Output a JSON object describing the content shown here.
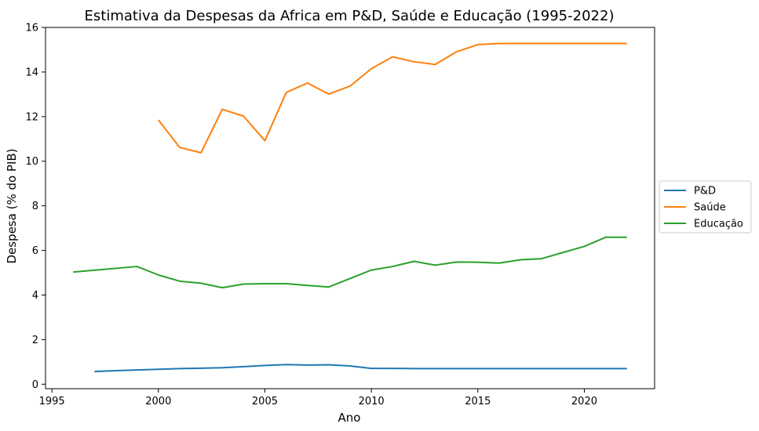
{
  "chart_data": {
    "type": "line",
    "title": "Estimativa da Despesas da Africa em P&D, Saúde e Educação (1995-2022)",
    "xlabel": "Ano",
    "ylabel": "Despesa (% do PIB)",
    "xlim": [
      1994.7,
      2023.3
    ],
    "ylim": [
      -0.2,
      16
    ],
    "xticks": [
      1995,
      2000,
      2005,
      2010,
      2015,
      2020
    ],
    "yticks": [
      0,
      2,
      4,
      6,
      8,
      10,
      12,
      14,
      16
    ],
    "grid": false,
    "legend_position": "center-right-outside",
    "series": [
      {
        "name": "P&D",
        "color": "#1f77b4",
        "x": [
          1997,
          1998,
          1999,
          2000,
          2001,
          2002,
          2003,
          2004,
          2005,
          2006,
          2007,
          2008,
          2009,
          2010,
          2011,
          2012,
          2013,
          2014,
          2015,
          2016,
          2017,
          2018,
          2019,
          2020,
          2021,
          2022
        ],
        "values": [
          0.57,
          0.61,
          0.64,
          0.67,
          0.7,
          0.72,
          0.74,
          0.79,
          0.84,
          0.88,
          0.86,
          0.87,
          0.82,
          0.71,
          0.71,
          0.7,
          0.7,
          0.7,
          0.7,
          0.7,
          0.7,
          0.7,
          0.7,
          0.7,
          0.7,
          0.7
        ]
      },
      {
        "name": "Saúde",
        "color": "#ff7f0e",
        "x": [
          2000,
          2001,
          2002,
          2003,
          2004,
          2005,
          2006,
          2007,
          2008,
          2009,
          2010,
          2011,
          2012,
          2013,
          2014,
          2015,
          2016,
          2017,
          2018,
          2019,
          2020,
          2021,
          2022
        ],
        "values": [
          11.85,
          10.62,
          10.38,
          12.33,
          12.02,
          10.92,
          13.08,
          13.51,
          13.01,
          13.37,
          14.15,
          14.68,
          14.46,
          14.34,
          14.91,
          15.23,
          15.28,
          15.28,
          15.28,
          15.28,
          15.28,
          15.28,
          15.28
        ]
      },
      {
        "name": "Educação",
        "color": "#2ca02c",
        "x": [
          1996,
          1999,
          2000,
          2001,
          2002,
          2003,
          2004,
          2005,
          2006,
          2007,
          2008,
          2009,
          2010,
          2011,
          2012,
          2013,
          2014,
          2015,
          2016,
          2017,
          2018,
          2019,
          2020,
          2021,
          2022
        ],
        "values": [
          5.03,
          5.28,
          4.9,
          4.62,
          4.53,
          4.33,
          4.49,
          4.51,
          4.51,
          4.43,
          4.36,
          4.74,
          5.12,
          5.28,
          5.51,
          5.34,
          5.48,
          5.47,
          5.43,
          5.58,
          5.63,
          5.91,
          6.18,
          6.59,
          6.59
        ]
      }
    ]
  }
}
